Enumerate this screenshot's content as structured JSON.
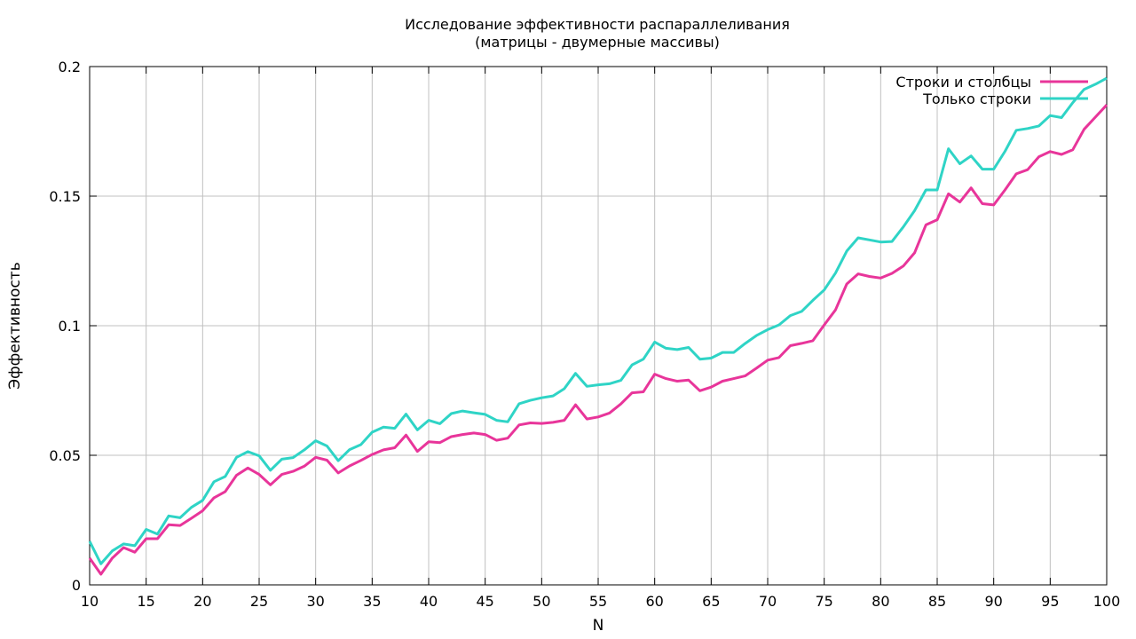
{
  "chart_data": {
    "type": "line",
    "title": "Исследование эффективности распараллеливания",
    "subtitle": "(матрицы - двумерные массивы)",
    "xlabel": "N",
    "ylabel": "Эффективность",
    "xlim": [
      10,
      100
    ],
    "ylim": [
      0,
      0.2
    ],
    "xticks": [
      "10",
      "15",
      "20",
      "25",
      "30",
      "35",
      "40",
      "45",
      "50",
      "55",
      "60",
      "65",
      "70",
      "75",
      "80",
      "85",
      "90",
      "95",
      "100"
    ],
    "yticks": [
      "0",
      "0.05",
      "0.1",
      "0.15",
      "0.2"
    ],
    "grid": true,
    "legend_position": "top-right",
    "x": [
      10,
      11,
      12,
      13,
      14,
      15,
      16,
      17,
      18,
      19,
      20,
      21,
      22,
      23,
      24,
      25,
      26,
      27,
      28,
      29,
      30,
      31,
      32,
      33,
      34,
      35,
      36,
      37,
      38,
      39,
      40,
      41,
      42,
      43,
      44,
      45,
      46,
      47,
      48,
      49,
      50,
      51,
      52,
      53,
      54,
      55,
      56,
      57,
      58,
      59,
      60,
      61,
      62,
      63,
      64,
      65,
      66,
      67,
      68,
      69,
      70,
      71,
      72,
      73,
      74,
      75,
      76,
      77,
      78,
      79,
      80,
      81,
      82,
      83,
      84,
      85,
      86,
      87,
      88,
      89,
      90,
      91,
      92,
      93,
      94,
      95,
      96,
      97,
      98,
      99,
      100
    ],
    "series": [
      {
        "name": "Строки и столбцы",
        "color": "#e8359a",
        "values": [
          0.0103,
          0.0041,
          0.0103,
          0.0144,
          0.0126,
          0.0178,
          0.0178,
          0.0232,
          0.0229,
          0.0257,
          0.0286,
          0.0336,
          0.036,
          0.0423,
          0.0451,
          0.0426,
          0.0386,
          0.0426,
          0.0438,
          0.0458,
          0.0492,
          0.0481,
          0.0432,
          0.0459,
          0.048,
          0.0503,
          0.0521,
          0.0529,
          0.0578,
          0.0515,
          0.0552,
          0.0549,
          0.0572,
          0.058,
          0.0586,
          0.058,
          0.0558,
          0.0566,
          0.0617,
          0.0625,
          0.0623,
          0.0627,
          0.0635,
          0.0695,
          0.064,
          0.0648,
          0.0663,
          0.0698,
          0.0741,
          0.0745,
          0.0813,
          0.0796,
          0.0786,
          0.079,
          0.0749,
          0.0763,
          0.0786,
          0.0796,
          0.0806,
          0.0836,
          0.0867,
          0.0877,
          0.0923,
          0.0932,
          0.0942,
          0.1003,
          0.1061,
          0.1161,
          0.12,
          0.119,
          0.1184,
          0.1202,
          0.123,
          0.1281,
          0.1389,
          0.1409,
          0.1509,
          0.1477,
          0.1532,
          0.1471,
          0.1466,
          0.1524,
          0.1586,
          0.1602,
          0.1652,
          0.1672,
          0.1661,
          0.1679,
          0.1758,
          0.1805,
          0.1852
        ]
      },
      {
        "name": "Только строки",
        "color": "#2fd4c6",
        "values": [
          0.0168,
          0.0081,
          0.0131,
          0.0158,
          0.0151,
          0.0214,
          0.0196,
          0.0266,
          0.0259,
          0.0299,
          0.0326,
          0.0398,
          0.0418,
          0.0492,
          0.0514,
          0.0498,
          0.0442,
          0.0485,
          0.0491,
          0.0521,
          0.0556,
          0.0536,
          0.0479,
          0.0522,
          0.0541,
          0.0589,
          0.0609,
          0.0604,
          0.0659,
          0.0598,
          0.0635,
          0.0622,
          0.0661,
          0.0671,
          0.0664,
          0.0658,
          0.0635,
          0.0629,
          0.0699,
          0.0712,
          0.0722,
          0.0729,
          0.0757,
          0.0816,
          0.0766,
          0.0772,
          0.0776,
          0.0789,
          0.0849,
          0.0871,
          0.0937,
          0.0913,
          0.0908,
          0.0916,
          0.0871,
          0.0875,
          0.0897,
          0.0897,
          0.0931,
          0.0962,
          0.0985,
          0.1003,
          0.1039,
          0.1055,
          0.1098,
          0.1138,
          0.1203,
          0.1288,
          0.1339,
          0.1331,
          0.1323,
          0.1325,
          0.1381,
          0.1444,
          0.1524,
          0.1524,
          0.1683,
          0.1625,
          0.1655,
          0.1604,
          0.1604,
          0.1673,
          0.1754,
          0.1761,
          0.1771,
          0.1811,
          0.1803,
          0.1861,
          0.1912,
          0.1932,
          0.1955
        ]
      }
    ]
  }
}
